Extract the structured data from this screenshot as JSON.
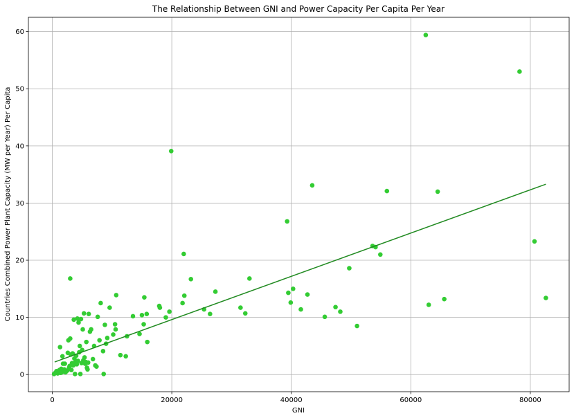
{
  "chart_data": {
    "type": "scatter",
    "title": "The Relationship Between GNI and Power Capacity Per Capita Per Year",
    "xlabel": "GNI",
    "ylabel": "Countries Combined Power Plant Capacity (MW per Year) Per Capita",
    "xlim": [
      -4000,
      86500
    ],
    "ylim": [
      -3,
      62.5
    ],
    "xticks": [
      0,
      20000,
      40000,
      60000,
      80000
    ],
    "yticks": [
      0,
      10,
      20,
      30,
      40,
      50,
      60
    ],
    "grid": true,
    "colors": {
      "points": "#33cc33",
      "line": "#228b22",
      "grid": "#b0b0b0"
    },
    "points": [
      [
        300,
        0.1
      ],
      [
        500,
        0.3
      ],
      [
        700,
        0.6
      ],
      [
        900,
        0.2
      ],
      [
        1100,
        0.5
      ],
      [
        1200,
        0.8
      ],
      [
        1300,
        4.8
      ],
      [
        1400,
        0.3
      ],
      [
        1500,
        1.0
      ],
      [
        1600,
        0.4
      ],
      [
        1700,
        3.2
      ],
      [
        1800,
        1.9
      ],
      [
        1900,
        0.6
      ],
      [
        2000,
        0.9
      ],
      [
        2100,
        1.9
      ],
      [
        2200,
        0.4
      ],
      [
        2300,
        0.5
      ],
      [
        2500,
        0.7
      ],
      [
        2600,
        3.8
      ],
      [
        2700,
        6.0
      ],
      [
        2800,
        1.2
      ],
      [
        2900,
        1.5
      ],
      [
        3000,
        6.3
      ],
      [
        3000,
        16.8
      ],
      [
        3100,
        3.5
      ],
      [
        3200,
        0.8
      ],
      [
        3300,
        2.0
      ],
      [
        3400,
        3.7
      ],
      [
        3500,
        1.6
      ],
      [
        3600,
        9.6
      ],
      [
        3700,
        2.8
      ],
      [
        3800,
        0.1
      ],
      [
        3900,
        2.2
      ],
      [
        4000,
        3.3
      ],
      [
        4100,
        1.8
      ],
      [
        4200,
        9.8
      ],
      [
        4300,
        2.4
      ],
      [
        4400,
        9.1
      ],
      [
        4500,
        3.9
      ],
      [
        4600,
        5.0
      ],
      [
        4700,
        0.1
      ],
      [
        4800,
        9.7
      ],
      [
        4900,
        2.0
      ],
      [
        5000,
        4.3
      ],
      [
        5100,
        7.9
      ],
      [
        5200,
        2.5
      ],
      [
        5300,
        10.7
      ],
      [
        5400,
        3.0
      ],
      [
        5500,
        1.9
      ],
      [
        5600,
        2.2
      ],
      [
        5700,
        5.7
      ],
      [
        5800,
        1.2
      ],
      [
        5900,
        0.9
      ],
      [
        6000,
        2.1
      ],
      [
        6100,
        10.6
      ],
      [
        6300,
        7.5
      ],
      [
        6500,
        7.9
      ],
      [
        6800,
        2.7
      ],
      [
        7000,
        5.0
      ],
      [
        7200,
        1.6
      ],
      [
        7400,
        1.4
      ],
      [
        7600,
        10.1
      ],
      [
        7900,
        6.0
      ],
      [
        8100,
        12.5
      ],
      [
        8500,
        4.1
      ],
      [
        8600,
        0.1
      ],
      [
        8800,
        8.7
      ],
      [
        9000,
        5.4
      ],
      [
        9200,
        6.4
      ],
      [
        9600,
        11.7
      ],
      [
        10200,
        7.0
      ],
      [
        10500,
        8.8
      ],
      [
        10600,
        7.9
      ],
      [
        10700,
        13.9
      ],
      [
        11400,
        3.4
      ],
      [
        12300,
        3.2
      ],
      [
        12500,
        6.7
      ],
      [
        13500,
        10.2
      ],
      [
        14600,
        7.1
      ],
      [
        15000,
        10.4
      ],
      [
        15300,
        8.8
      ],
      [
        15400,
        13.5
      ],
      [
        15800,
        10.6
      ],
      [
        15900,
        5.7
      ],
      [
        17900,
        12.0
      ],
      [
        18000,
        11.7
      ],
      [
        19000,
        10.0
      ],
      [
        19600,
        11.0
      ],
      [
        19900,
        39.1
      ],
      [
        21800,
        12.5
      ],
      [
        22000,
        21.1
      ],
      [
        22100,
        13.8
      ],
      [
        23200,
        16.7
      ],
      [
        25400,
        11.4
      ],
      [
        26400,
        10.6
      ],
      [
        27300,
        14.5
      ],
      [
        31500,
        11.7
      ],
      [
        32300,
        10.7
      ],
      [
        33000,
        16.8
      ],
      [
        39300,
        26.8
      ],
      [
        39500,
        14.3
      ],
      [
        39900,
        12.6
      ],
      [
        40300,
        15.0
      ],
      [
        41600,
        11.4
      ],
      [
        42700,
        14.0
      ],
      [
        43500,
        33.1
      ],
      [
        45600,
        10.1
      ],
      [
        47400,
        11.8
      ],
      [
        48200,
        11.0
      ],
      [
        49700,
        18.6
      ],
      [
        51000,
        8.5
      ],
      [
        53600,
        22.5
      ],
      [
        54100,
        22.3
      ],
      [
        54900,
        21.0
      ],
      [
        56000,
        32.1
      ],
      [
        62500,
        59.4
      ],
      [
        63000,
        12.2
      ],
      [
        64500,
        32.0
      ],
      [
        65600,
        13.2
      ],
      [
        78200,
        53.0
      ],
      [
        80700,
        23.3
      ],
      [
        82600,
        13.4
      ]
    ],
    "trendline": {
      "x": [
        400,
        82600
      ],
      "y": [
        2.2,
        33.3
      ]
    }
  }
}
